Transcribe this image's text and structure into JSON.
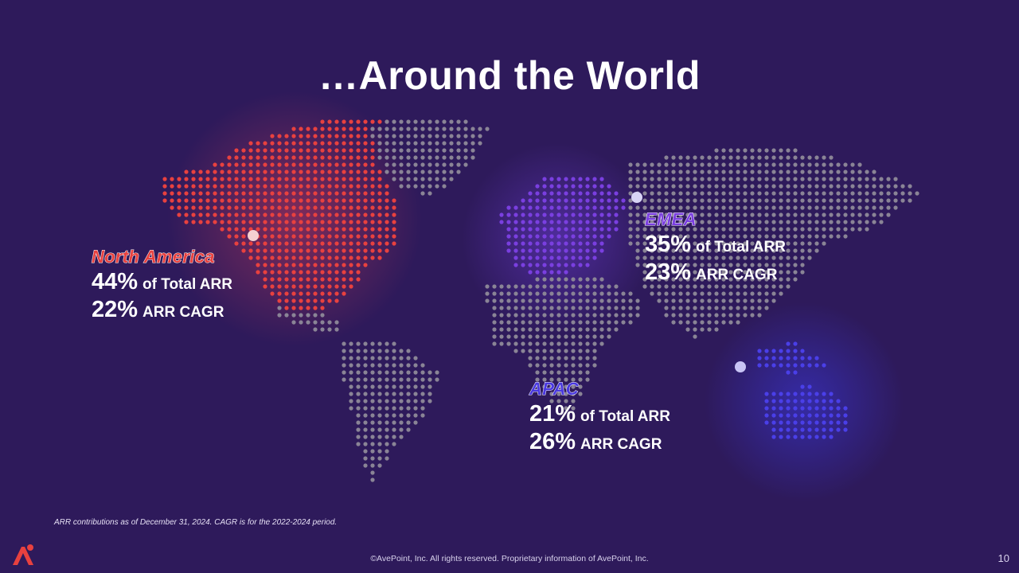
{
  "title": "…Around the World",
  "regions": {
    "north_america": {
      "name": "North America",
      "color": "#e8413f",
      "total_arr": {
        "value": "44%",
        "label": "of Total ARR"
      },
      "cagr": {
        "value": "22%",
        "label": "ARR CAGR"
      }
    },
    "emea": {
      "name": "EMEA",
      "color": "#7b3fe0",
      "total_arr": {
        "value": "35%",
        "label": "of Total ARR"
      },
      "cagr": {
        "value": "23%",
        "label": "ARR CAGR"
      }
    },
    "apac": {
      "name": "APAC",
      "color": "#4a39e0",
      "total_arr": {
        "value": "21%",
        "label": "of Total ARR"
      },
      "cagr": {
        "value": "26%",
        "label": "ARR CAGR"
      }
    }
  },
  "footnote": "ARR contributions as of December 31, 2024. CAGR is for the 2022-2024 period.",
  "copyright": "©AvePoint, Inc. All rights reserved. Proprietary information of AvePoint, Inc.",
  "page_number": "10",
  "icons": {
    "logo": "avepoint-logo-icon"
  }
}
